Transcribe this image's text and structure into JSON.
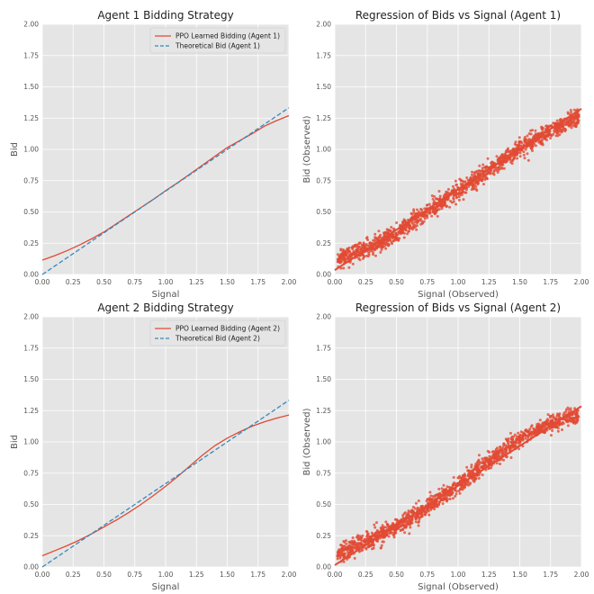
{
  "colors": {
    "panel_bg": "#e5e5e5",
    "grid": "#ffffff",
    "learned": "#e24a33",
    "theoretical": "#348abd",
    "points": "#e24a33"
  },
  "chart_data": [
    {
      "type": "line",
      "title": "Agent 1 Bidding Strategy",
      "xlabel": "Signal",
      "ylabel": "Bid",
      "xlim": [
        0,
        2
      ],
      "ylim": [
        0,
        2
      ],
      "xticks": [
        "0.00",
        "0.25",
        "0.50",
        "0.75",
        "1.00",
        "1.25",
        "1.50",
        "1.75",
        "2.00"
      ],
      "yticks": [
        "0.00",
        "0.25",
        "0.50",
        "0.75",
        "1.00",
        "1.25",
        "1.50",
        "1.75",
        "2.00"
      ],
      "grid": true,
      "legend": "top-right",
      "series": [
        {
          "name": "PPO Learned Bidding (Agent 1)",
          "style": "solid",
          "x": [
            0,
            0.1,
            0.2,
            0.3,
            0.4,
            0.5,
            0.6,
            0.7,
            0.8,
            0.9,
            1.0,
            1.1,
            1.2,
            1.3,
            1.4,
            1.5,
            1.6,
            1.7,
            1.8,
            1.9,
            2.0
          ],
          "y": [
            0.115,
            0.15,
            0.19,
            0.235,
            0.285,
            0.34,
            0.405,
            0.47,
            0.535,
            0.6,
            0.67,
            0.735,
            0.805,
            0.875,
            0.945,
            1.015,
            1.07,
            1.125,
            1.185,
            1.23,
            1.27
          ]
        },
        {
          "name": "Theoretical Bid (Agent 1)",
          "style": "dashed",
          "x": [
            0,
            2
          ],
          "y": [
            0,
            1.333
          ]
        }
      ]
    },
    {
      "type": "scatter",
      "title": "Regression of Bids vs Signal (Agent 1)",
      "xlabel": "Signal (Observed)",
      "ylabel": "Bid (Observed)",
      "xlim": [
        0,
        2
      ],
      "ylim": [
        0,
        2
      ],
      "xticks": [
        "0.00",
        "0.25",
        "0.50",
        "0.75",
        "1.00",
        "1.25",
        "1.50",
        "1.75",
        "2.00"
      ],
      "yticks": [
        "0.00",
        "0.25",
        "0.50",
        "0.75",
        "1.00",
        "1.25",
        "1.50",
        "1.75",
        "2.00"
      ],
      "grid": true,
      "trend": {
        "slope": 0.645,
        "intercept": 0.035
      },
      "points": {
        "x_range": [
          0.02,
          1.98
        ],
        "y": {
          "x": [
            0,
            0.25,
            0.5,
            0.75,
            1.0,
            1.25,
            1.5,
            1.75,
            2.0
          ],
          "y": [
            0.12,
            0.2,
            0.33,
            0.5,
            0.67,
            0.84,
            1.01,
            1.15,
            1.27
          ]
        },
        "spread": 0.035,
        "count": 1400
      }
    },
    {
      "type": "line",
      "title": "Agent 2 Bidding Strategy",
      "xlabel": "Signal",
      "ylabel": "Bid",
      "xlim": [
        0,
        2
      ],
      "ylim": [
        0,
        2
      ],
      "xticks": [
        "0.00",
        "0.25",
        "0.50",
        "0.75",
        "1.00",
        "1.25",
        "1.50",
        "1.75",
        "2.00"
      ],
      "yticks": [
        "0.00",
        "0.25",
        "0.50",
        "0.75",
        "1.00",
        "1.25",
        "1.50",
        "1.75",
        "2.00"
      ],
      "grid": true,
      "legend": "top-right",
      "series": [
        {
          "name": "PPO Learned Bidding (Agent 2)",
          "style": "solid",
          "x": [
            0,
            0.1,
            0.2,
            0.3,
            0.4,
            0.5,
            0.6,
            0.7,
            0.8,
            0.9,
            1.0,
            1.1,
            1.2,
            1.3,
            1.4,
            1.5,
            1.6,
            1.7,
            1.8,
            1.9,
            2.0
          ],
          "y": [
            0.09,
            0.13,
            0.17,
            0.215,
            0.265,
            0.32,
            0.375,
            0.435,
            0.5,
            0.57,
            0.645,
            0.725,
            0.81,
            0.895,
            0.97,
            1.03,
            1.08,
            1.125,
            1.16,
            1.19,
            1.215
          ]
        },
        {
          "name": "Theoretical Bid (Agent 2)",
          "style": "dashed",
          "x": [
            0,
            2
          ],
          "y": [
            0,
            1.333
          ]
        }
      ]
    },
    {
      "type": "scatter",
      "title": "Regression of Bids vs Signal (Agent 2)",
      "xlabel": "Signal (Observed)",
      "ylabel": "Bid (Observed)",
      "xlim": [
        0,
        2
      ],
      "ylim": [
        0,
        2
      ],
      "xticks": [
        "0.00",
        "0.25",
        "0.50",
        "0.75",
        "1.00",
        "1.25",
        "1.50",
        "1.75",
        "2.00"
      ],
      "yticks": [
        "0.00",
        "0.25",
        "0.50",
        "0.75",
        "1.00",
        "1.25",
        "1.50",
        "1.75",
        "2.00"
      ],
      "grid": true,
      "trend": {
        "slope": 0.635,
        "intercept": 0.015
      },
      "points": {
        "x_range": [
          0.02,
          1.98
        ],
        "y": {
          "x": [
            0,
            0.25,
            0.5,
            0.75,
            1.0,
            1.25,
            1.5,
            1.75,
            2.0
          ],
          "y": [
            0.09,
            0.2,
            0.32,
            0.48,
            0.65,
            0.85,
            1.03,
            1.15,
            1.22
          ]
        },
        "spread": 0.035,
        "count": 1400
      }
    }
  ]
}
